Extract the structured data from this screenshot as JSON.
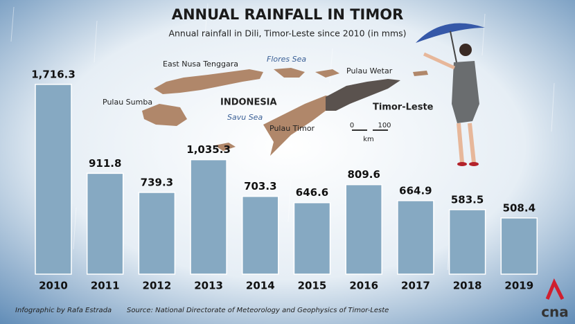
{
  "chart_data": {
    "type": "bar",
    "title": "ANNUAL RAINFALL IN TIMOR",
    "subtitle": "Annual rainfall in Dili, Timor-Leste since 2010 (in mms)",
    "categories": [
      "2010",
      "2011",
      "2012",
      "2013",
      "2014",
      "2015",
      "2016",
      "2017",
      "2018",
      "2019"
    ],
    "values": [
      1716.3,
      911.8,
      739.3,
      1035.3,
      703.3,
      646.6,
      809.6,
      664.9,
      583.5,
      508.4
    ],
    "value_labels": [
      "1,716.3",
      "911.8",
      "739.3",
      "1,035.3",
      "703.3",
      "646.6",
      "809.6",
      "664.9",
      "583.5",
      "508.4"
    ],
    "color": "#86a9c2",
    "map_labels": [
      "East Nusa Tenggara",
      "Flores Sea",
      "Pulau Wetar",
      "Pulau Sumba",
      "INDONESIA",
      "Savu Sea",
      "Pulau Timor",
      "Timor-Leste"
    ],
    "scale_bar": {
      "ticks": [
        "0",
        "100"
      ],
      "unit": "km"
    },
    "credit": "Infographic by Rafa Estrada",
    "source": "Source: National Directorate of Meteorology and Geophysics of Timor-Leste",
    "logo": "cna"
  }
}
